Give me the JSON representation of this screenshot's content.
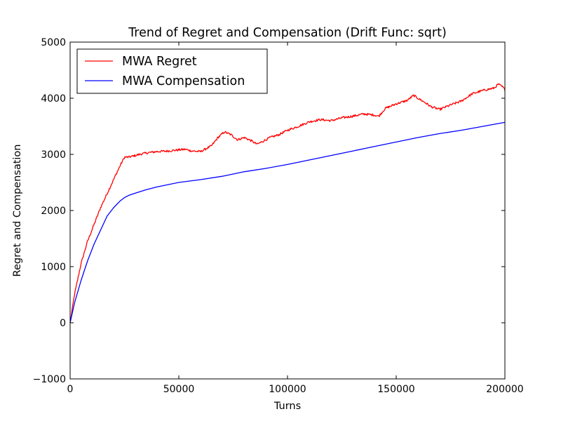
{
  "chart_data": {
    "type": "line",
    "title": "Trend of Regret and Compensation (Drift Func: sqrt)",
    "xlabel": "Turns",
    "ylabel": "Regret and Compensation",
    "xlim": [
      0,
      200000
    ],
    "ylim": [
      -1000,
      5000
    ],
    "xticks": [
      0,
      50000,
      100000,
      150000,
      200000
    ],
    "xtick_labels": [
      "0",
      "50000",
      "100000",
      "150000",
      "200000"
    ],
    "yticks": [
      -1000,
      0,
      1000,
      2000,
      3000,
      4000,
      5000
    ],
    "ytick_labels": [
      "−1000",
      "0",
      "1000",
      "2000",
      "3000",
      "4000",
      "5000"
    ],
    "grid": false,
    "legend_position": "top-left",
    "series": [
      {
        "name": "MWA Regret",
        "color": "#ff0000",
        "x": [
          0,
          2000,
          5000,
          8000,
          11000,
          14000,
          17000,
          20000,
          23000,
          25000,
          27000,
          30000,
          33000,
          36000,
          40000,
          45000,
          50000,
          53000,
          56000,
          60000,
          65000,
          68000,
          71000,
          74000,
          77000,
          80000,
          83000,
          86000,
          88000,
          92000,
          96000,
          100000,
          105000,
          110000,
          115000,
          120000,
          125000,
          130000,
          135000,
          140000,
          142000,
          145000,
          150000,
          155000,
          158000,
          160000,
          163000,
          166000,
          170000,
          175000,
          180000,
          185000,
          190000,
          195000,
          197000,
          199000,
          200000
        ],
        "y": [
          0,
          500,
          1050,
          1450,
          1750,
          2050,
          2300,
          2550,
          2800,
          2950,
          2950,
          2980,
          3010,
          3030,
          3050,
          3060,
          3080,
          3090,
          3060,
          3050,
          3150,
          3300,
          3400,
          3350,
          3260,
          3300,
          3250,
          3180,
          3220,
          3300,
          3350,
          3430,
          3500,
          3580,
          3620,
          3600,
          3650,
          3680,
          3720,
          3700,
          3680,
          3820,
          3900,
          3960,
          4050,
          4000,
          3930,
          3850,
          3800,
          3880,
          3950,
          4080,
          4140,
          4180,
          4250,
          4200,
          4150
        ]
      },
      {
        "name": "MWA Compensation",
        "color": "#0000ff",
        "x": [
          0,
          2000,
          5000,
          8000,
          11000,
          14000,
          17000,
          20000,
          23000,
          25000,
          27000,
          30000,
          35000,
          40000,
          50000,
          60000,
          70000,
          80000,
          90000,
          100000,
          110000,
          120000,
          130000,
          140000,
          150000,
          160000,
          170000,
          180000,
          190000,
          200000
        ],
        "y": [
          0,
          350,
          750,
          1100,
          1400,
          1650,
          1900,
          2050,
          2170,
          2230,
          2270,
          2310,
          2370,
          2420,
          2500,
          2550,
          2610,
          2690,
          2750,
          2820,
          2900,
          2980,
          3060,
          3140,
          3220,
          3300,
          3370,
          3430,
          3500,
          3570
        ]
      }
    ]
  }
}
